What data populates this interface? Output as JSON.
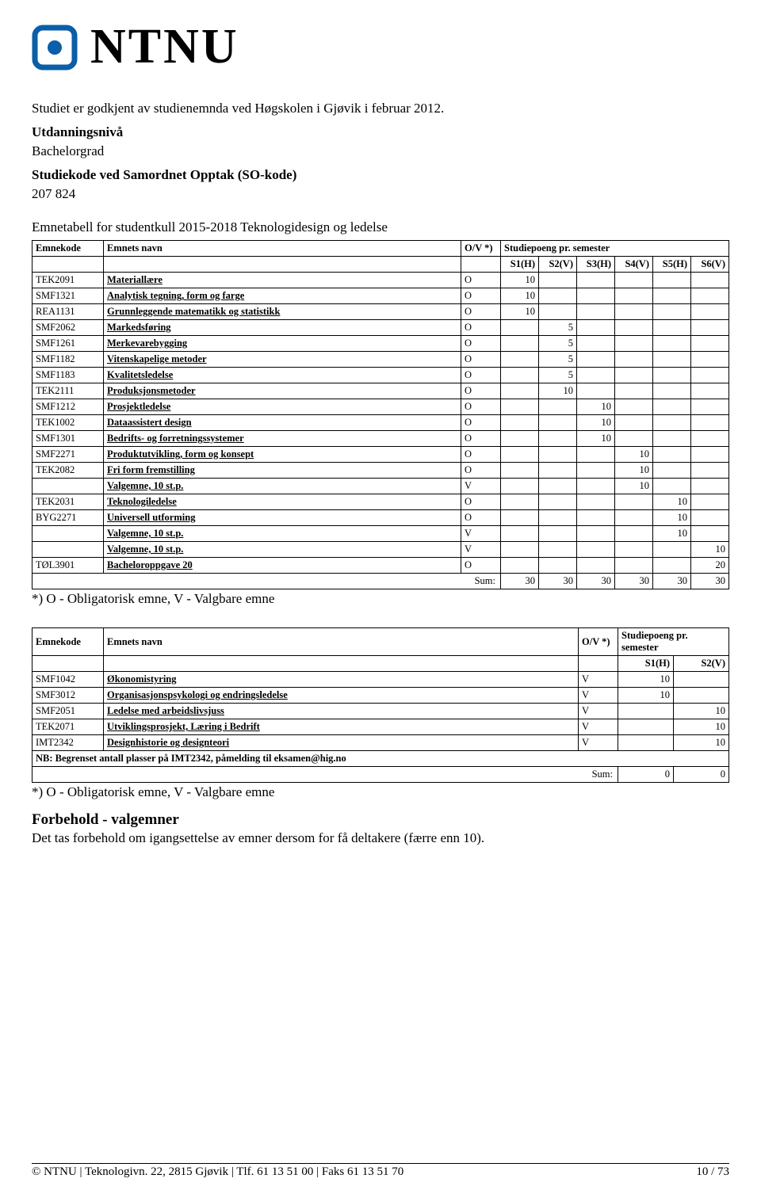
{
  "logo": {
    "text": "NTNU",
    "icon_name": "ntnu-logo-icon"
  },
  "intro_line": "Studiet er godkjent av studienemnda ved Høgskolen i Gjøvik i februar 2012.",
  "level_label": "Utdanningsnivå",
  "level_value": "Bachelorgrad",
  "code_label": "Studiekode ved Samordnet Opptak (SO-kode)",
  "code_value": "207 824",
  "table1_title": "Emnetabell for studentkull 2015-2018 Teknologidesign og ledelse",
  "headers": {
    "code": "Emnekode",
    "name": "Emnets navn",
    "ov": "O/V *)",
    "sp": "Studiepoeng pr. semester"
  },
  "sem6": [
    "S1(H)",
    "S2(V)",
    "S3(H)",
    "S4(V)",
    "S5(H)",
    "S6(V)"
  ],
  "sem2": [
    "S1(H)",
    "S2(V)"
  ],
  "table1_rows": [
    {
      "code": "TEK2091",
      "name": "Materiallære",
      "ov": "O",
      "vals": [
        "10",
        "",
        "",
        "",
        "",
        ""
      ]
    },
    {
      "code": "SMF1321",
      "name": "Analytisk tegning, form og farge",
      "ov": "O",
      "vals": [
        "10",
        "",
        "",
        "",
        "",
        ""
      ]
    },
    {
      "code": "REA1131",
      "name": "Grunnleggende matematikk og statistikk",
      "ov": "O",
      "vals": [
        "10",
        "",
        "",
        "",
        "",
        ""
      ]
    },
    {
      "code": "SMF2062",
      "name": "Markedsføring",
      "ov": "O",
      "vals": [
        "",
        "5",
        "",
        "",
        "",
        ""
      ]
    },
    {
      "code": "SMF1261",
      "name": "Merkevarebygging",
      "ov": "O",
      "vals": [
        "",
        "5",
        "",
        "",
        "",
        ""
      ]
    },
    {
      "code": "SMF1182",
      "name": "Vitenskapelige metoder",
      "ov": "O",
      "vals": [
        "",
        "5",
        "",
        "",
        "",
        ""
      ]
    },
    {
      "code": "SMF1183",
      "name": "Kvalitetsledelse",
      "ov": "O",
      "vals": [
        "",
        "5",
        "",
        "",
        "",
        ""
      ]
    },
    {
      "code": "TEK2111",
      "name": "Produksjonsmetoder",
      "ov": "O",
      "vals": [
        "",
        "10",
        "",
        "",
        "",
        ""
      ]
    },
    {
      "code": "SMF1212",
      "name": "Prosjektledelse",
      "ov": "O",
      "vals": [
        "",
        "",
        "10",
        "",
        "",
        ""
      ]
    },
    {
      "code": "TEK1002",
      "name": "Dataassistert design",
      "ov": "O",
      "vals": [
        "",
        "",
        "10",
        "",
        "",
        ""
      ]
    },
    {
      "code": "SMF1301",
      "name": "Bedrifts- og forretningssystemer",
      "ov": "O",
      "vals": [
        "",
        "",
        "10",
        "",
        "",
        ""
      ]
    },
    {
      "code": "SMF2271",
      "name": "Produktutvikling, form og konsept",
      "ov": "O",
      "vals": [
        "",
        "",
        "",
        "10",
        "",
        ""
      ]
    },
    {
      "code": "TEK2082",
      "name": "Fri form fremstilling",
      "ov": "O",
      "vals": [
        "",
        "",
        "",
        "10",
        "",
        ""
      ]
    },
    {
      "code": "",
      "name": "Valgemne, 10 st.p.",
      "ov": "V",
      "vals": [
        "",
        "",
        "",
        "10",
        "",
        ""
      ]
    },
    {
      "code": "TEK2031",
      "name": "Teknologiledelse",
      "ov": "O",
      "vals": [
        "",
        "",
        "",
        "",
        "10",
        ""
      ]
    },
    {
      "code": "BYG2271",
      "name": "Universell utforming",
      "ov": "O",
      "vals": [
        "",
        "",
        "",
        "",
        "10",
        ""
      ]
    },
    {
      "code": "",
      "name": "Valgemne, 10 st.p.",
      "ov": "V",
      "vals": [
        "",
        "",
        "",
        "",
        "10",
        ""
      ]
    },
    {
      "code": "",
      "name": "Valgemne, 10 st.p.",
      "ov": "V",
      "vals": [
        "",
        "",
        "",
        "",
        "",
        "10"
      ]
    },
    {
      "code": "TØL3901",
      "name": "Bacheloroppgave 20",
      "ov": "O",
      "vals": [
        "",
        "",
        "",
        "",
        "",
        "20"
      ]
    }
  ],
  "table1_sum_label": "Sum:",
  "table1_sums": [
    "30",
    "30",
    "30",
    "30",
    "30",
    "30"
  ],
  "legend": "*) O - Obligatorisk emne, V - Valgbare emne",
  "table2_rows": [
    {
      "code": "SMF1042",
      "name": "Økonomistyring",
      "ov": "V",
      "vals": [
        "10",
        ""
      ]
    },
    {
      "code": "SMF3012",
      "name": "Organisasjonspsykologi og endringsledelse",
      "ov": "V",
      "vals": [
        "10",
        ""
      ]
    },
    {
      "code": "SMF2051",
      "name": "Ledelse med arbeidslivsjuss",
      "ov": "V",
      "vals": [
        "",
        "10"
      ]
    },
    {
      "code": "TEK2071",
      "name": "Utviklingsprosjekt, Læring i Bedrift",
      "ov": "V",
      "vals": [
        "",
        "10"
      ]
    },
    {
      "code": "IMT2342",
      "name": "Designhistorie og designteori",
      "ov": "V",
      "vals": [
        "",
        "10"
      ]
    }
  ],
  "table2_note": "NB: Begrenset antall plasser på IMT2342, påmelding til eksamen@hig.no",
  "table2_sum_label": "Sum:",
  "table2_sums": [
    "0",
    "0"
  ],
  "forbehold_title": "Forbehold - valgemner",
  "forbehold_text": "Det tas forbehold om igangsettelse av emner dersom for få deltakere (færre enn 10).",
  "footer_left": "© NTNU | Teknologivn. 22, 2815 Gjøvik | Tlf. 61 13 51 00 | Faks 61 13 51 70",
  "footer_right": "10 / 73"
}
